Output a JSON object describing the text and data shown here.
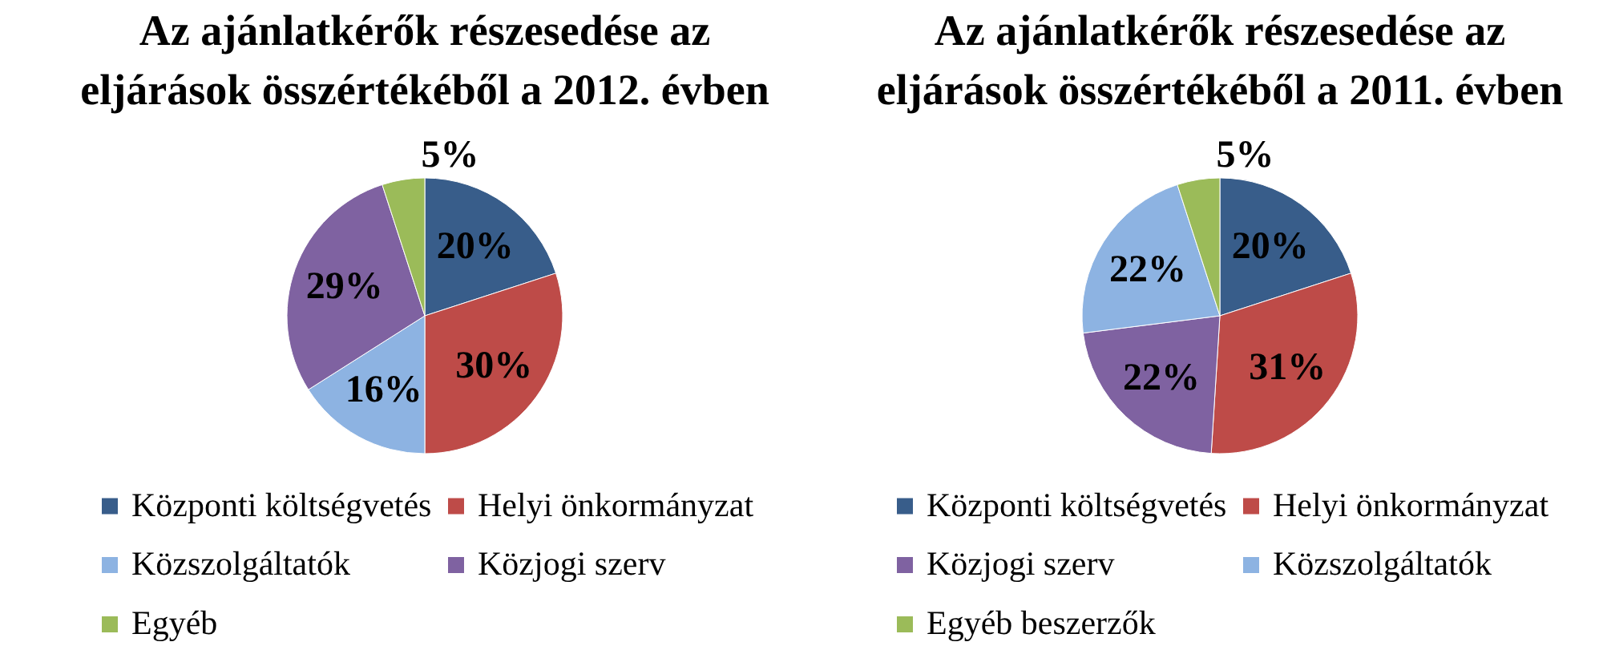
{
  "chart_data": [
    {
      "type": "pie",
      "title": "Az ajánlatkérők részesedése az eljárások összértékéből a 2012. évben",
      "categories": [
        "Központi költségvetés",
        "Helyi önkormányzat",
        "Közszolgáltatók",
        "Közjogi szerv",
        "Egyéb"
      ],
      "values": [
        20,
        30,
        16,
        29,
        5
      ],
      "colors": [
        "#385d8a",
        "#be4b48",
        "#8db3e2",
        "#7f62a1",
        "#9bbb59"
      ],
      "value_labels": [
        "20%",
        "30%",
        "16%",
        "29%",
        "5%"
      ],
      "legend": "bottom"
    },
    {
      "type": "pie",
      "title": "Az ajánlatkérők részesedése az eljárások összértékéből a 2011. évben",
      "categories": [
        "Központi költségvetés",
        "Helyi önkormányzat",
        "Közjogi szerv",
        "Közszolgáltatók",
        "Egyéb beszerzők"
      ],
      "values": [
        20,
        31,
        22,
        22,
        5
      ],
      "colors": [
        "#385d8a",
        "#be4b48",
        "#7f62a1",
        "#8db3e2",
        "#9bbb59"
      ],
      "value_labels": [
        "20%",
        "31%",
        "22%",
        "22%",
        "5%"
      ],
      "legend": "bottom"
    }
  ]
}
